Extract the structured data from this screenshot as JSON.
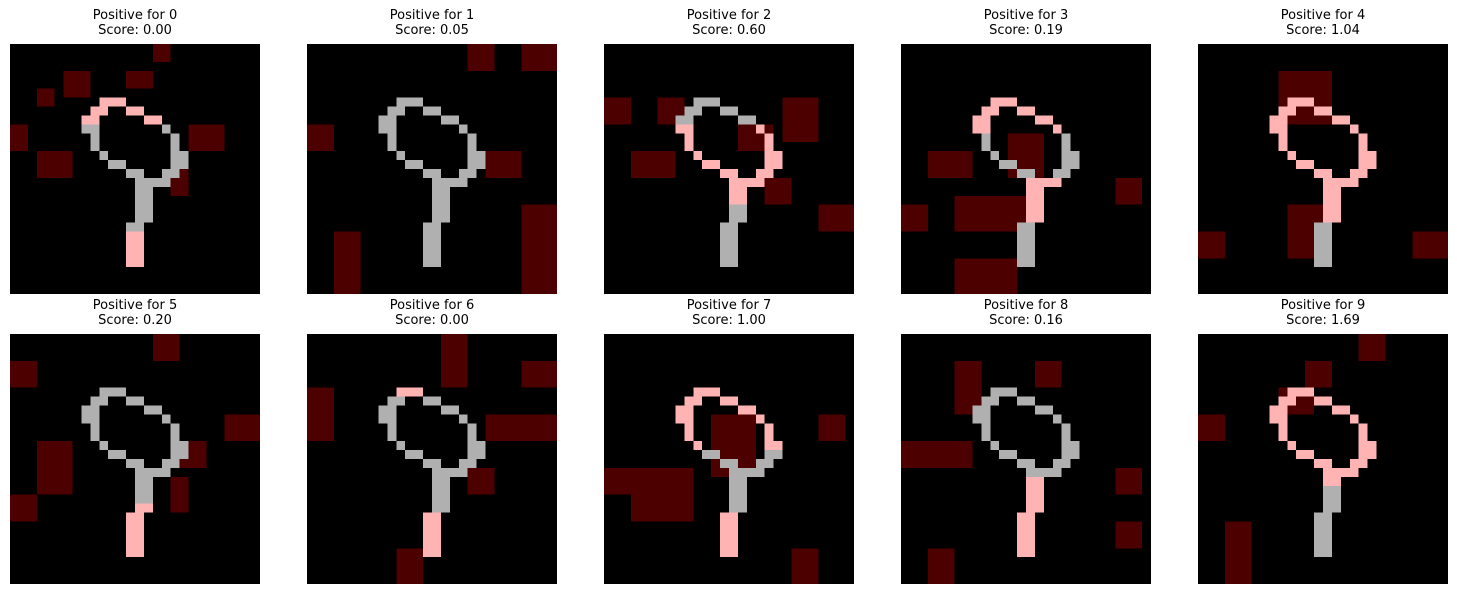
{
  "panels": [
    {
      "label": "Positive for 0",
      "score": "Score: 0.00"
    },
    {
      "label": "Positive for 1",
      "score": "Score: 0.05"
    },
    {
      "label": "Positive for 2",
      "score": "Score: 0.60"
    },
    {
      "label": "Positive for 3",
      "score": "Score: 0.19"
    },
    {
      "label": "Positive for 4",
      "score": "Score: 1.04"
    },
    {
      "label": "Positive for 5",
      "score": "Score: 0.20"
    },
    {
      "label": "Positive for 6",
      "score": "Score: 0.00"
    },
    {
      "label": "Positive for 7",
      "score": "Score: 1.00"
    },
    {
      "label": "Positive for 8",
      "score": "Score: 0.16"
    },
    {
      "label": "Positive for 9",
      "score": "Score: 1.69"
    }
  ],
  "colors": {
    "background": "#000000",
    "digit": "#b0b0b0",
    "highlight": "#ffb3b3",
    "region": "#4d0000"
  }
}
